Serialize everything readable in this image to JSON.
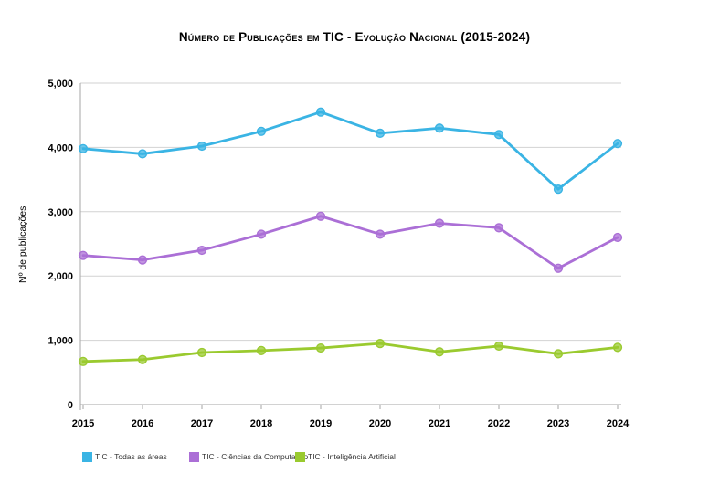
{
  "chart_data": {
    "type": "line",
    "title": "Número de Publicações em TIC - Evolução Nacional (2015-2024)",
    "xlabel": "",
    "ylabel": "Nº de publicações",
    "x": [
      2015,
      2016,
      2017,
      2018,
      2019,
      2020,
      2021,
      2022,
      2023,
      2024
    ],
    "ylim": [
      0,
      5000
    ],
    "y_tick_step": 1000,
    "y_tick_labels": [
      "0",
      "1,000",
      "2,000",
      "3,000",
      "4,000",
      "5,000"
    ],
    "grid": true,
    "legend_position": "bottom-left",
    "series": [
      {
        "name": "TIC - Todas as áreas",
        "color": "#3ab4e4",
        "values": [
          3980,
          3900,
          4020,
          4250,
          4550,
          4220,
          4300,
          4200,
          3350,
          4060
        ]
      },
      {
        "name": "TIC - Ciências da Computação",
        "color": "#ab6fd6",
        "values": [
          2320,
          2250,
          2400,
          2650,
          2930,
          2650,
          2820,
          2750,
          2120,
          2600
        ]
      },
      {
        "name": "TIC - Inteligência Artificial",
        "color": "#9aca2f",
        "values": [
          670,
          700,
          810,
          840,
          880,
          950,
          820,
          910,
          790,
          890
        ]
      }
    ],
    "colors": {
      "axis": "#a6a6a6",
      "grid": "#d2d2d2",
      "text": "#000000",
      "legend_text": "#333333"
    }
  }
}
